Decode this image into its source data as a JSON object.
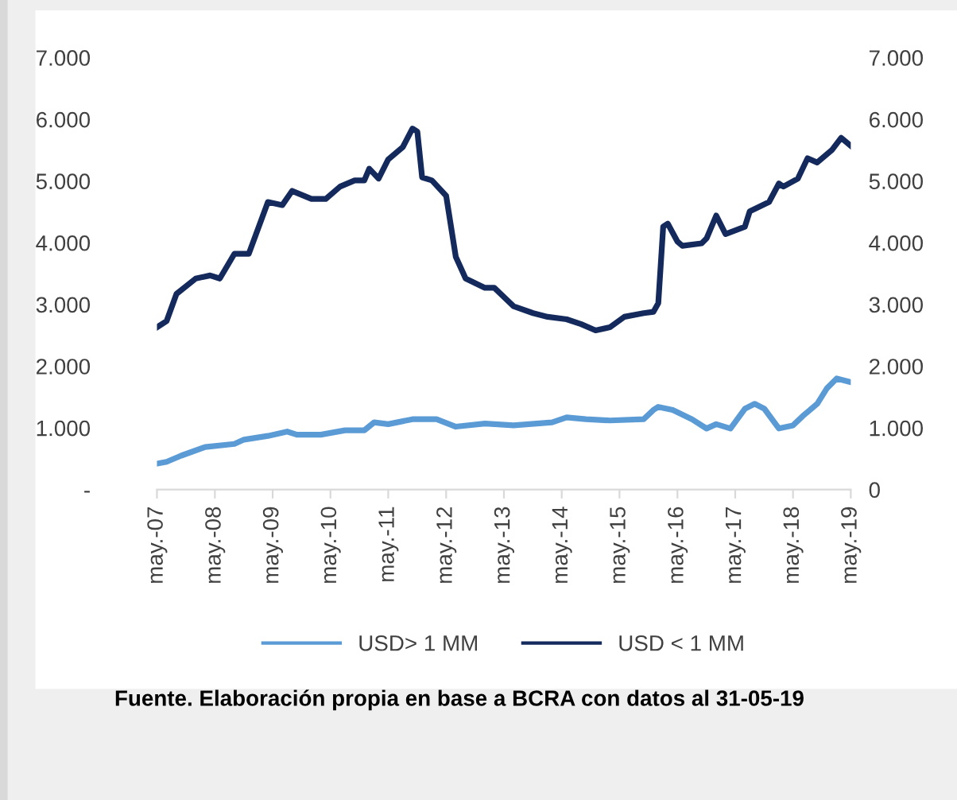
{
  "chart_data": {
    "type": "line",
    "annotations": [
      "Fuente. Elaboración propia en base a BCRA con datos al 31-05-19"
    ],
    "series": [
      {
        "name": "USD> 1 MM",
        "color": "#5b9bd5",
        "x": [
          "2007-05",
          "2007-07",
          "2007-10",
          "2008-03",
          "2008-09",
          "2008-11",
          "2009-04",
          "2009-08",
          "2009-10",
          "2010-03",
          "2010-08",
          "2010-12",
          "2011-02",
          "2011-05",
          "2011-10",
          "2012-03",
          "2012-07",
          "2013-01",
          "2013-07",
          "2014-03",
          "2014-06",
          "2014-10",
          "2015-03",
          "2015-10",
          "2015-12",
          "2016-01",
          "2016-04",
          "2016-08",
          "2016-11",
          "2017-01",
          "2017-04",
          "2017-07",
          "2017-09",
          "2017-11",
          "2018-02",
          "2018-05",
          "2018-07",
          "2018-10",
          "2018-12",
          "2019-02",
          "2019-05"
        ],
        "values": [
          420,
          450,
          550,
          690,
          740,
          810,
          870,
          940,
          890,
          890,
          960,
          960,
          1090,
          1060,
          1140,
          1140,
          1020,
          1070,
          1040,
          1090,
          1170,
          1140,
          1120,
          1140,
          1290,
          1340,
          1290,
          1140,
          990,
          1060,
          990,
          1310,
          1390,
          1310,
          990,
          1040,
          1190,
          1390,
          1640,
          1800,
          1740
        ]
      },
      {
        "name": "USD < 1 MM",
        "color": "#152a5c",
        "x": [
          "2007-05",
          "2007-07",
          "2007-09",
          "2008-01",
          "2008-04",
          "2008-06",
          "2008-09",
          "2008-12",
          "2009-04",
          "2009-07",
          "2009-09",
          "2010-01",
          "2010-04",
          "2010-07",
          "2010-10",
          "2010-12",
          "2011-01",
          "2011-03",
          "2011-05",
          "2011-08",
          "2011-10",
          "2011-11",
          "2011-12",
          "2012-02",
          "2012-05",
          "2012-07",
          "2012-09",
          "2013-01",
          "2013-03",
          "2013-07",
          "2013-11",
          "2014-02",
          "2014-06",
          "2014-09",
          "2014-12",
          "2015-03",
          "2015-06",
          "2015-10",
          "2015-12",
          "2016-01",
          "2016-02",
          "2016-03",
          "2016-05",
          "2016-06",
          "2016-10",
          "2016-11",
          "2017-01",
          "2017-03",
          "2017-07",
          "2017-08",
          "2017-12",
          "2018-02",
          "2018-03",
          "2018-06",
          "2018-08",
          "2018-10",
          "2019-01",
          "2019-03",
          "2019-05"
        ],
        "values": [
          2630,
          2730,
          3170,
          3420,
          3470,
          3420,
          3820,
          3820,
          4660,
          4610,
          4840,
          4710,
          4710,
          4910,
          5010,
          5010,
          5200,
          5040,
          5350,
          5550,
          5850,
          5800,
          5060,
          5010,
          4760,
          3770,
          3420,
          3270,
          3270,
          2970,
          2860,
          2800,
          2760,
          2680,
          2580,
          2630,
          2800,
          2860,
          2880,
          3020,
          4260,
          4310,
          4020,
          3950,
          3990,
          4070,
          4440,
          4140,
          4260,
          4510,
          4660,
          4960,
          4910,
          5040,
          5370,
          5300,
          5500,
          5700,
          5570
        ]
      }
    ],
    "xlim": [
      "2007-05",
      "2019-05"
    ],
    "xticks": [
      {
        "value": "2007-05",
        "label": "may.-07"
      },
      {
        "value": "2008-05",
        "label": "may.-08"
      },
      {
        "value": "2009-05",
        "label": "may.-09"
      },
      {
        "value": "2010-05",
        "label": "may.-10"
      },
      {
        "value": "2011-05",
        "label": "may.-11"
      },
      {
        "value": "2012-05",
        "label": "may.-12"
      },
      {
        "value": "2013-05",
        "label": "may.-13"
      },
      {
        "value": "2014-05",
        "label": "may.-14"
      },
      {
        "value": "2015-05",
        "label": "may.-15"
      },
      {
        "value": "2016-05",
        "label": "may.-16"
      },
      {
        "value": "2017-05",
        "label": "may.-17"
      },
      {
        "value": "2018-05",
        "label": "may.-18"
      },
      {
        "value": "2019-05",
        "label": "may.-19"
      }
    ],
    "ylim": [
      0,
      7000
    ],
    "yticks": [
      {
        "value": 0,
        "label": "-"
      },
      {
        "value": 1000,
        "label": "1.000"
      },
      {
        "value": 2000,
        "label": "2.000"
      },
      {
        "value": 3000,
        "label": "3.000"
      },
      {
        "value": 4000,
        "label": "4.000"
      },
      {
        "value": 5000,
        "label": "5.000"
      },
      {
        "value": 6000,
        "label": "6.000"
      },
      {
        "value": 7000,
        "label": "7.000"
      }
    ],
    "y2lim": [
      0,
      7000
    ],
    "y2ticks": [
      0,
      {
        "value": 1000,
        "label": "1.000"
      },
      {
        "value": 2000,
        "label": "2.000"
      },
      {
        "value": 3000,
        "label": "3.000"
      },
      {
        "value": 4000,
        "label": "4.000"
      },
      {
        "value": 5000,
        "label": "5.000"
      },
      {
        "value": 6000,
        "label": "6.000"
      },
      {
        "value": 7000,
        "label": "7.000"
      }
    ],
    "grid": false,
    "legend": "bottom",
    "marker": "none",
    "line_style": "solid"
  }
}
